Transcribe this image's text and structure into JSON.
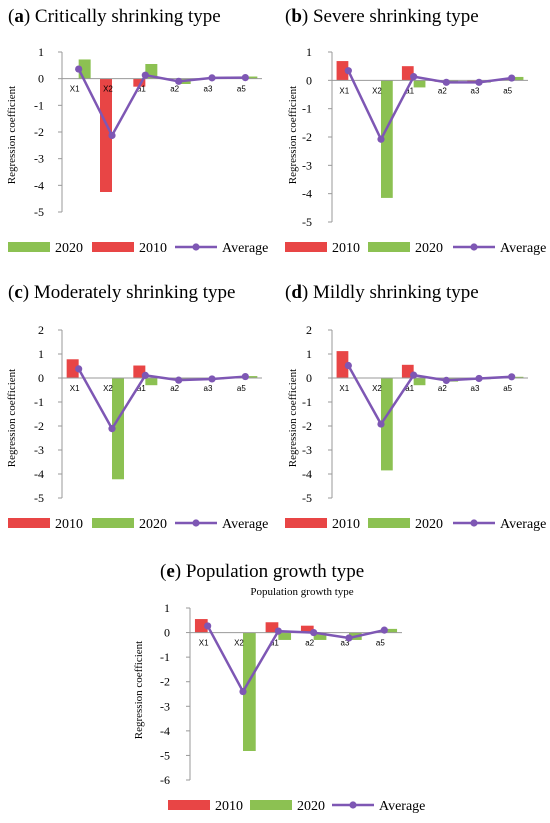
{
  "colors": {
    "y2010": "#e84545",
    "y2020": "#8cc152",
    "average": "#7e57b4"
  },
  "chart_data": [
    {
      "id": "a",
      "type": "bar",
      "letter": "a",
      "title": "Critically shrinking type",
      "subtitle": "",
      "categories": [
        "X1",
        "X2",
        "a1",
        "a2",
        "a3",
        "a5"
      ],
      "ylabel": "Regression coefficient",
      "ylim": [
        -5,
        1
      ],
      "yticks": [
        "1",
        "0",
        "-1",
        "-2",
        "-3",
        "-4",
        "-5"
      ],
      "legend_order": [
        "2020",
        "2010",
        "Average"
      ],
      "series": [
        {
          "name": "2010",
          "values": [
            0.0,
            -4.25,
            -0.3,
            0.0,
            0.0,
            0.0
          ]
        },
        {
          "name": "2020",
          "values": [
            0.72,
            0.0,
            0.55,
            -0.2,
            0.05,
            0.08
          ]
        },
        {
          "name": "Average",
          "values": [
            0.36,
            -2.13,
            0.13,
            -0.1,
            0.03,
            0.04
          ]
        }
      ]
    },
    {
      "id": "b",
      "type": "bar",
      "letter": "b",
      "title": "Severe shrinking type",
      "subtitle": "",
      "categories": [
        "X1",
        "X2",
        "a1",
        "a2",
        "a3",
        "a5"
      ],
      "ylabel": "Regression coefficient",
      "ylim": [
        -5,
        1
      ],
      "yticks": [
        "1",
        "0",
        "-1",
        "-2",
        "-3",
        "-4",
        "-5"
      ],
      "legend_order": [
        "2010",
        "2020",
        "Average"
      ],
      "series": [
        {
          "name": "2010",
          "values": [
            0.68,
            0.0,
            0.5,
            -0.05,
            -0.05,
            0.05
          ]
        },
        {
          "name": "2020",
          "values": [
            0.0,
            -4.15,
            -0.25,
            -0.08,
            -0.08,
            0.12
          ]
        },
        {
          "name": "Average",
          "values": [
            0.34,
            -2.08,
            0.13,
            -0.07,
            -0.07,
            0.08
          ]
        }
      ]
    },
    {
      "id": "c",
      "type": "bar",
      "letter": "c",
      "title": "Moderately shrinking type",
      "subtitle": "",
      "categories": [
        "X1",
        "X2",
        "a1",
        "a2",
        "a3",
        "a5"
      ],
      "ylabel": "Regression coefficient",
      "ylim": [
        -5,
        2
      ],
      "yticks": [
        "2",
        "1",
        "0",
        "-1",
        "-2",
        "-3",
        "-4",
        "-5"
      ],
      "legend_order": [
        "2010",
        "2020",
        "Average"
      ],
      "series": [
        {
          "name": "2010",
          "values": [
            0.78,
            0.0,
            0.52,
            -0.05,
            -0.03,
            0.05
          ]
        },
        {
          "name": "2020",
          "values": [
            0.0,
            -4.22,
            -0.3,
            -0.12,
            -0.05,
            0.08
          ]
        },
        {
          "name": "Average",
          "values": [
            0.38,
            -2.11,
            0.11,
            -0.09,
            -0.04,
            0.06
          ]
        }
      ]
    },
    {
      "id": "d",
      "type": "bar",
      "letter": "d",
      "title": "Mildly shrinking type",
      "subtitle": "",
      "categories": [
        "X1",
        "X2",
        "a1",
        "a2",
        "a3",
        "a5"
      ],
      "ylabel": "Regression coefficient",
      "ylim": [
        -5,
        2
      ],
      "yticks": [
        "2",
        "1",
        "0",
        "-1",
        "-2",
        "-3",
        "-4",
        "-5"
      ],
      "legend_order": [
        "2010",
        "2020",
        "Average"
      ],
      "series": [
        {
          "name": "2010",
          "values": [
            1.12,
            0.0,
            0.55,
            -0.05,
            0.0,
            0.05
          ]
        },
        {
          "name": "2020",
          "values": [
            0.0,
            -3.85,
            -0.3,
            -0.15,
            -0.05,
            0.05
          ]
        },
        {
          "name": "Average",
          "values": [
            0.52,
            -1.92,
            0.12,
            -0.1,
            -0.02,
            0.05
          ]
        }
      ]
    },
    {
      "id": "e",
      "type": "bar",
      "letter": "e",
      "title": "Population growth type",
      "subtitle": "Population growth type",
      "categories": [
        "X1",
        "X2",
        "a1",
        "a2",
        "a3",
        "a5"
      ],
      "ylabel": "Regression coefficient",
      "ylim": [
        -6,
        1
      ],
      "yticks": [
        "1",
        "0",
        "-1",
        "-2",
        "-3",
        "-4",
        "-5",
        "-6"
      ],
      "legend_order": [
        "2010",
        "2020",
        "Average"
      ],
      "series": [
        {
          "name": "2010",
          "values": [
            0.55,
            0.0,
            0.42,
            0.28,
            0.0,
            0.0
          ]
        },
        {
          "name": "2020",
          "values": [
            0.0,
            -4.82,
            -0.3,
            -0.3,
            -0.3,
            0.15
          ]
        },
        {
          "name": "Average",
          "values": [
            0.27,
            -2.4,
            0.06,
            0.0,
            -0.22,
            0.1
          ]
        }
      ]
    }
  ]
}
